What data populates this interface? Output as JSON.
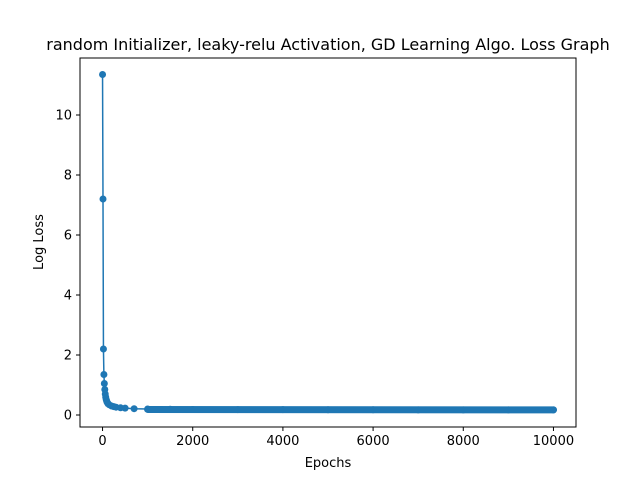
{
  "chart_data": {
    "type": "line",
    "title": "random Initializer, leaky-relu Activation, GD Learning Algo. Loss Graph",
    "xlabel": "Epochs",
    "ylabel": "Log Loss",
    "xlim": [
      -500,
      10500
    ],
    "ylim": [
      -0.4,
      11.9
    ],
    "xticks": [
      0,
      2000,
      4000,
      6000,
      8000,
      10000
    ],
    "xtick_labels": [
      "0",
      "2000",
      "4000",
      "6000",
      "8000",
      "10000"
    ],
    "yticks": [
      0,
      2,
      4,
      6,
      8,
      10
    ],
    "ytick_labels": [
      "0",
      "2",
      "4",
      "6",
      "8",
      "10"
    ],
    "grid": false,
    "legend": "none",
    "marker": "circle",
    "color": "#1f77b4",
    "series": [
      {
        "x": [
          0,
          10,
          20,
          30,
          40,
          50,
          60,
          70,
          80,
          90,
          100,
          120,
          150,
          200,
          250,
          300,
          400,
          500,
          700,
          1000,
          1500,
          2000,
          3000,
          4000,
          5000,
          6000,
          7000,
          8000,
          9000,
          10000
        ],
        "y": [
          11.35,
          7.2,
          2.2,
          1.35,
          1.05,
          0.85,
          0.7,
          0.6,
          0.52,
          0.47,
          0.43,
          0.38,
          0.34,
          0.3,
          0.28,
          0.26,
          0.24,
          0.23,
          0.21,
          0.2,
          0.19,
          0.185,
          0.18,
          0.18,
          0.175,
          0.175,
          0.17,
          0.17,
          0.17,
          0.17
        ]
      }
    ]
  }
}
